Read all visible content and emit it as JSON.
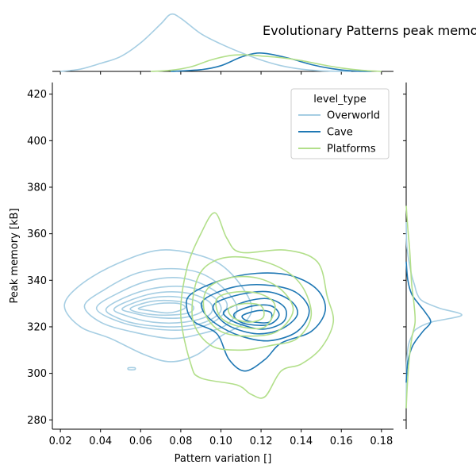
{
  "chart_data": {
    "type": "kde-jointplot",
    "title": "Evolutionary Patterns peak memory",
    "xlabel": "Pattern variation []",
    "ylabel": "Peak memory [kB]",
    "xlim": [
      0.016,
      0.186
    ],
    "ylim": [
      276,
      425
    ],
    "xticks": [
      0.02,
      0.04,
      0.06,
      0.08,
      0.1,
      0.12,
      0.14,
      0.16,
      0.18
    ],
    "xtick_labels": [
      "0.02",
      "0.04",
      "0.06",
      "0.08",
      "0.10",
      "0.12",
      "0.14",
      "0.16",
      "0.18"
    ],
    "yticks": [
      280,
      300,
      320,
      340,
      360,
      380,
      400,
      420
    ],
    "ytick_labels": [
      "280",
      "300",
      "320",
      "340",
      "360",
      "380",
      "400",
      "420"
    ],
    "grid": false,
    "legend": {
      "title": "level_type",
      "placement": "upper right"
    },
    "series": [
      {
        "name": "Overworld",
        "color": "#a6cee3",
        "center": [
          0.075,
          327
        ],
        "contours": [
          [
            [
              0.022,
              329
            ],
            [
              0.03,
              338
            ],
            [
              0.048,
              347
            ],
            [
              0.07,
              353
            ],
            [
              0.092,
              350
            ],
            [
              0.105,
              343
            ],
            [
              0.115,
              330
            ],
            [
              0.112,
              322
            ],
            [
              0.1,
              316
            ],
            [
              0.088,
              308
            ],
            [
              0.075,
              305
            ],
            [
              0.062,
              308
            ],
            [
              0.045,
              315
            ],
            [
              0.03,
              320
            ]
          ],
          [
            [
              0.032,
              329
            ],
            [
              0.042,
              336
            ],
            [
              0.058,
              343
            ],
            [
              0.075,
              345
            ],
            [
              0.09,
              343
            ],
            [
              0.102,
              336
            ],
            [
              0.108,
              328
            ],
            [
              0.103,
              321
            ],
            [
              0.09,
              317
            ],
            [
              0.075,
              315
            ],
            [
              0.055,
              318
            ],
            [
              0.04,
              322
            ]
          ],
          [
            [
              0.038,
              328
            ],
            [
              0.05,
              335
            ],
            [
              0.065,
              340
            ],
            [
              0.08,
              341
            ],
            [
              0.094,
              337
            ],
            [
              0.103,
              330
            ],
            [
              0.098,
              323
            ],
            [
              0.085,
              319
            ],
            [
              0.068,
              319
            ],
            [
              0.05,
              322
            ]
          ],
          [
            [
              0.043,
              328
            ],
            [
              0.056,
              334
            ],
            [
              0.07,
              337
            ],
            [
              0.084,
              337
            ],
            [
              0.096,
              333
            ],
            [
              0.1,
              327
            ],
            [
              0.092,
              322
            ],
            [
              0.078,
              320
            ],
            [
              0.06,
              321
            ],
            [
              0.048,
              324
            ]
          ],
          [
            [
              0.047,
              328
            ],
            [
              0.06,
              333
            ],
            [
              0.073,
              335
            ],
            [
              0.086,
              334
            ],
            [
              0.095,
              330
            ],
            [
              0.094,
              325
            ],
            [
              0.082,
              322
            ],
            [
              0.066,
              322
            ],
            [
              0.052,
              325
            ]
          ],
          [
            [
              0.051,
              328
            ],
            [
              0.063,
              332
            ],
            [
              0.076,
              333
            ],
            [
              0.088,
              331
            ],
            [
              0.091,
              327
            ],
            [
              0.082,
              324
            ],
            [
              0.068,
              324
            ],
            [
              0.056,
              326
            ]
          ],
          [
            [
              0.055,
              328
            ],
            [
              0.066,
              331
            ],
            [
              0.078,
              331
            ],
            [
              0.086,
              329
            ],
            [
              0.084,
              326
            ],
            [
              0.072,
              325
            ],
            [
              0.06,
              326
            ]
          ],
          [
            [
              0.059,
              328
            ],
            [
              0.069,
              330
            ],
            [
              0.079,
              330
            ],
            [
              0.082,
              328
            ],
            [
              0.074,
              326
            ],
            [
              0.064,
              327
            ]
          ],
          [
            [
              0.054,
              302.4
            ],
            [
              0.057,
              302.4
            ],
            [
              0.057,
              301.6
            ],
            [
              0.054,
              301.6
            ]
          ]
        ],
        "marginal_x": [
          [
            0.02,
            0.0
          ],
          [
            0.03,
            0.04
          ],
          [
            0.04,
            0.14
          ],
          [
            0.05,
            0.26
          ],
          [
            0.06,
            0.5
          ],
          [
            0.07,
            0.83
          ],
          [
            0.075,
            1.0
          ],
          [
            0.08,
            0.93
          ],
          [
            0.09,
            0.66
          ],
          [
            0.1,
            0.48
          ],
          [
            0.11,
            0.33
          ],
          [
            0.12,
            0.2
          ],
          [
            0.13,
            0.1
          ],
          [
            0.14,
            0.04
          ],
          [
            0.15,
            0.01
          ],
          [
            0.165,
            0.0
          ]
        ],
        "marginal_y": [
          [
            285,
            0.0
          ],
          [
            305,
            0.01
          ],
          [
            312,
            0.04
          ],
          [
            316,
            0.1
          ],
          [
            319,
            0.18
          ],
          [
            322,
            0.45
          ],
          [
            325,
            1.0
          ],
          [
            328,
            0.6
          ],
          [
            331,
            0.3
          ],
          [
            334,
            0.2
          ],
          [
            338,
            0.15
          ],
          [
            342,
            0.1
          ],
          [
            348,
            0.05
          ],
          [
            355,
            0.01
          ],
          [
            365,
            0.0
          ]
        ]
      },
      {
        "name": "Cave",
        "color": "#1f78b4",
        "center": [
          0.12,
          323
        ],
        "contours": [
          [
            [
              0.085,
              334
            ],
            [
              0.1,
              340
            ],
            [
              0.118,
              343
            ],
            [
              0.135,
              342
            ],
            [
              0.148,
              336
            ],
            [
              0.152,
              327
            ],
            [
              0.145,
              318
            ],
            [
              0.13,
              313
            ],
            [
              0.122,
              306
            ],
            [
              0.112,
              301
            ],
            [
              0.104,
              306
            ],
            [
              0.098,
              317
            ],
            [
              0.087,
              322
            ],
            [
              0.083,
              328
            ]
          ],
          [
            [
              0.092,
              332
            ],
            [
              0.106,
              337
            ],
            [
              0.122,
              338
            ],
            [
              0.137,
              335
            ],
            [
              0.144,
              327
            ],
            [
              0.138,
              318
            ],
            [
              0.124,
              314
            ],
            [
              0.11,
              316
            ],
            [
              0.098,
              321
            ],
            [
              0.091,
              327
            ]
          ],
          [
            [
              0.097,
              330
            ],
            [
              0.11,
              334
            ],
            [
              0.124,
              335
            ],
            [
              0.135,
              331
            ],
            [
              0.138,
              325
            ],
            [
              0.13,
              319
            ],
            [
              0.118,
              317
            ],
            [
              0.105,
              320
            ],
            [
              0.098,
              325
            ]
          ],
          [
            [
              0.102,
              327
            ],
            [
              0.113,
              331
            ],
            [
              0.124,
              332
            ],
            [
              0.132,
              328
            ],
            [
              0.131,
              322
            ],
            [
              0.121,
              319
            ],
            [
              0.11,
              321
            ],
            [
              0.103,
              324
            ]
          ],
          [
            [
              0.107,
              326
            ],
            [
              0.116,
              329
            ],
            [
              0.125,
              329
            ],
            [
              0.129,
              325
            ],
            [
              0.124,
              321
            ],
            [
              0.114,
              321
            ],
            [
              0.108,
              323
            ]
          ],
          [
            [
              0.111,
              325
            ],
            [
              0.119,
              327
            ],
            [
              0.125,
              326
            ],
            [
              0.124,
              322
            ],
            [
              0.117,
              322
            ],
            [
              0.112,
              323
            ]
          ]
        ],
        "marginal_x": [
          [
            0.075,
            0.0
          ],
          [
            0.09,
            0.03
          ],
          [
            0.1,
            0.1
          ],
          [
            0.11,
            0.25
          ],
          [
            0.118,
            0.32
          ],
          [
            0.125,
            0.3
          ],
          [
            0.135,
            0.22
          ],
          [
            0.145,
            0.12
          ],
          [
            0.155,
            0.05
          ],
          [
            0.165,
            0.01
          ],
          [
            0.175,
            0.0
          ]
        ],
        "marginal_y": [
          [
            296,
            0.0
          ],
          [
            305,
            0.03
          ],
          [
            312,
            0.12
          ],
          [
            318,
            0.3
          ],
          [
            322,
            0.44
          ],
          [
            326,
            0.35
          ],
          [
            330,
            0.22
          ],
          [
            334,
            0.1
          ],
          [
            340,
            0.03
          ],
          [
            348,
            0.0
          ]
        ]
      },
      {
        "name": "Platforms",
        "color": "#b2df8a",
        "center": [
          0.112,
          324
        ],
        "contours": [
          [
            [
              0.083,
              345
            ],
            [
              0.09,
              360
            ],
            [
              0.097,
              369
            ],
            [
              0.103,
              358
            ],
            [
              0.11,
              352
            ],
            [
              0.132,
              353
            ],
            [
              0.148,
              348
            ],
            [
              0.153,
              333
            ],
            [
              0.156,
              322
            ],
            [
              0.15,
              311
            ],
            [
              0.14,
              304
            ],
            [
              0.13,
              301
            ],
            [
              0.122,
              290
            ],
            [
              0.115,
              291
            ],
            [
              0.108,
              295
            ],
            [
              0.09,
              298
            ],
            [
              0.085,
              304
            ],
            [
              0.08,
              325
            ]
          ],
          [
            [
              0.088,
              340
            ],
            [
              0.096,
              348
            ],
            [
              0.11,
              350
            ],
            [
              0.128,
              346
            ],
            [
              0.14,
              338
            ],
            [
              0.145,
              325
            ],
            [
              0.138,
              315
            ],
            [
              0.125,
              312
            ],
            [
              0.11,
              310
            ],
            [
              0.095,
              312
            ],
            [
              0.086,
              323
            ]
          ],
          [
            [
              0.093,
              336
            ],
            [
              0.104,
              341
            ],
            [
              0.118,
              341
            ],
            [
              0.13,
              336
            ],
            [
              0.136,
              327
            ],
            [
              0.128,
              318
            ],
            [
              0.114,
              316
            ],
            [
              0.1,
              318
            ],
            [
              0.092,
              326
            ]
          ],
          [
            [
              0.098,
              332
            ],
            [
              0.108,
              335
            ],
            [
              0.12,
              334
            ],
            [
              0.127,
              329
            ],
            [
              0.122,
              320
            ],
            [
              0.11,
              320
            ],
            [
              0.1,
              324
            ]
          ],
          [
            [
              0.104,
              328
            ],
            [
              0.112,
              330
            ],
            [
              0.12,
              329
            ],
            [
              0.121,
              324
            ],
            [
              0.114,
              322
            ],
            [
              0.106,
              324
            ]
          ]
        ],
        "marginal_x": [
          [
            0.065,
            0.0
          ],
          [
            0.075,
            0.02
          ],
          [
            0.085,
            0.08
          ],
          [
            0.095,
            0.2
          ],
          [
            0.105,
            0.28
          ],
          [
            0.112,
            0.29
          ],
          [
            0.12,
            0.27
          ],
          [
            0.13,
            0.24
          ],
          [
            0.14,
            0.19
          ],
          [
            0.15,
            0.12
          ],
          [
            0.16,
            0.06
          ],
          [
            0.17,
            0.02
          ],
          [
            0.18,
            0.0
          ]
        ],
        "marginal_y": [
          [
            285,
            0.0
          ],
          [
            295,
            0.02
          ],
          [
            305,
            0.05
          ],
          [
            315,
            0.1
          ],
          [
            322,
            0.16
          ],
          [
            330,
            0.14
          ],
          [
            338,
            0.1
          ],
          [
            346,
            0.08
          ],
          [
            354,
            0.06
          ],
          [
            362,
            0.03
          ],
          [
            372,
            0.0
          ]
        ]
      }
    ]
  }
}
